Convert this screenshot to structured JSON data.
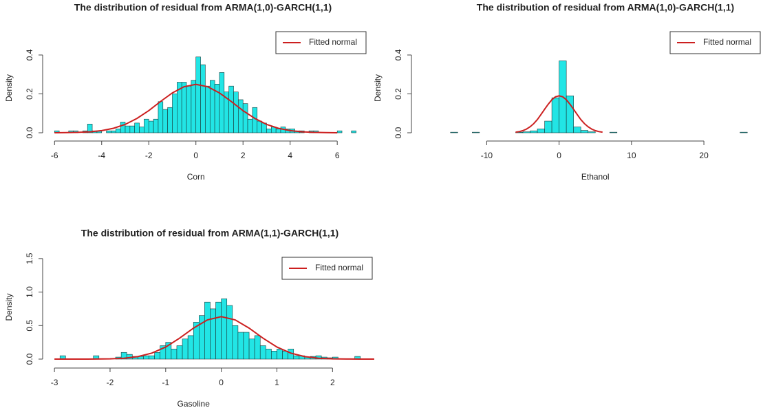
{
  "chart_data": [
    {
      "type": "histogram",
      "title": "The distribution of residual from ARMA(1,0)-GARCH(1,1)",
      "xlabel": "Corn",
      "ylabel": "Density",
      "color": "#22e5e5",
      "edgecolor": "#1a3a3a",
      "legend": "topright",
      "bins": [
        -6,
        -5.8,
        -5.6,
        -5.4,
        -5.2,
        -5,
        -4.8,
        -4.6,
        -4.4,
        -4.2,
        -4,
        -3.8,
        -3.6,
        -3.4,
        -3.2,
        -3,
        -2.8,
        -2.6,
        -2.4,
        -2.2,
        -2,
        -1.8,
        -1.6,
        -1.4,
        -1.2,
        -1,
        -0.8,
        -0.6,
        -0.4,
        -0.2,
        0,
        0.2,
        0.4,
        0.6,
        0.8,
        1,
        1.2,
        1.4,
        1.6,
        1.8,
        2,
        2.2,
        2.4,
        2.6,
        2.8,
        3,
        3.2,
        3.4,
        3.6,
        3.8,
        4,
        4.2,
        4.4,
        4.6,
        4.8,
        5,
        5.2,
        5.4,
        5.6,
        5.8,
        6,
        6.2,
        6.4,
        6.6,
        6.8
      ],
      "values": [
        0.01,
        0,
        0,
        0.01,
        0.01,
        0,
        0.01,
        0.045,
        0.01,
        0.01,
        0,
        0.01,
        0.01,
        0.02,
        0.055,
        0.035,
        0.035,
        0.05,
        0.03,
        0.07,
        0.06,
        0.07,
        0.16,
        0.12,
        0.13,
        0.2,
        0.26,
        0.26,
        0.24,
        0.27,
        0.39,
        0.35,
        0.24,
        0.27,
        0.25,
        0.31,
        0.21,
        0.24,
        0.21,
        0.17,
        0.15,
        0.07,
        0.13,
        0.06,
        0.05,
        0.02,
        0.03,
        0.02,
        0.03,
        0.02,
        0.02,
        0.01,
        0.01,
        0,
        0.01,
        0.01,
        0,
        0,
        0,
        0,
        0.01,
        0,
        0,
        0.01
      ],
      "lines": [
        {
          "name": "Fitted normal",
          "color": "#cc1f1f",
          "x": [
            -6,
            -5.5,
            -5,
            -4.5,
            -4,
            -3.5,
            -3,
            -2.5,
            -2,
            -1.5,
            -1,
            -0.5,
            0,
            0.5,
            1,
            1.5,
            2,
            2.5,
            3,
            3.5,
            4,
            4.5,
            5,
            5.5,
            6
          ],
          "values": [
            0,
            0.001,
            0.002,
            0.005,
            0.011,
            0.023,
            0.043,
            0.074,
            0.114,
            0.161,
            0.205,
            0.237,
            0.249,
            0.237,
            0.205,
            0.161,
            0.114,
            0.074,
            0.043,
            0.023,
            0.011,
            0.005,
            0.002,
            0.001,
            0
          ]
        }
      ],
      "xlim": [
        -6.3,
        6.9
      ],
      "xticks": [
        -6,
        -4,
        -2,
        0,
        2,
        4,
        6
      ],
      "ylim": [
        0,
        0.46
      ],
      "yticks": [
        {
          "value": 0,
          "label": "0.0"
        },
        0.2,
        0.4
      ]
    },
    {
      "type": "histogram",
      "title": "The distribution of residual from ARMA(1,0)-GARCH(1,1)",
      "xlabel": "Ethanol",
      "ylabel": "Density",
      "color": "#22e5e5",
      "edgecolor": "#1a3a3a",
      "legend": "topright",
      "bins": [
        -15,
        -14,
        -13,
        -12,
        -11,
        -10,
        -9,
        -8,
        -7,
        -6,
        -5,
        -4,
        -3,
        -2,
        -1,
        0,
        1,
        2,
        3,
        4,
        5,
        6,
        7,
        8,
        9,
        10,
        11,
        12,
        13,
        14,
        15,
        16,
        17,
        18,
        19,
        20,
        21,
        22,
        23,
        24,
        25,
        26
      ],
      "values": [
        0.003,
        0,
        0,
        0.003,
        0,
        0,
        0,
        0,
        0,
        0.003,
        0.005,
        0.01,
        0.02,
        0.06,
        0.18,
        0.37,
        0.19,
        0.03,
        0.012,
        0.005,
        0,
        0,
        0.003,
        0,
        0,
        0,
        0,
        0,
        0,
        0,
        0,
        0,
        0,
        0,
        0,
        0,
        0,
        0,
        0,
        0,
        0.003
      ],
      "lines": [
        {
          "name": "Fitted normal",
          "color": "#cc1f1f",
          "x": [
            -6,
            -5.5,
            -5,
            -4.5,
            -4,
            -3.5,
            -3,
            -2.5,
            -2,
            -1.5,
            -1,
            -0.5,
            0,
            0.5,
            1,
            1.5,
            2,
            2.5,
            3,
            3.5,
            4,
            4.5,
            5,
            5.5,
            6
          ],
          "values": [
            0.003,
            0.006,
            0.011,
            0.019,
            0.031,
            0.047,
            0.068,
            0.094,
            0.121,
            0.147,
            0.17,
            0.185,
            0.19,
            0.185,
            0.17,
            0.147,
            0.121,
            0.094,
            0.068,
            0.047,
            0.031,
            0.019,
            0.011,
            0.006,
            0.003
          ]
        }
      ],
      "xlim": [
        -16.5,
        27.5
      ],
      "xticks": [
        -10,
        0,
        10,
        20
      ],
      "ylim": [
        0,
        0.46
      ],
      "yticks": [
        {
          "value": 0,
          "label": "0.0"
        },
        0.2,
        0.4
      ]
    },
    {
      "type": "histogram",
      "title": "The distribution of residual from ARMA(1,1)-GARCH(1,1)",
      "xlabel": "Gasoline",
      "ylabel": "Density",
      "color": "#22e5e5",
      "edgecolor": "#1a3a3a",
      "legend": "topright",
      "bins": [
        -3,
        -2.9,
        -2.8,
        -2.7,
        -2.6,
        -2.5,
        -2.4,
        -2.3,
        -2.2,
        -2.1,
        -2,
        -1.9,
        -1.8,
        -1.7,
        -1.6,
        -1.5,
        -1.4,
        -1.3,
        -1.2,
        -1.1,
        -1,
        -0.9,
        -0.8,
        -0.7,
        -0.6,
        -0.5,
        -0.4,
        -0.3,
        -0.2,
        -0.1,
        0,
        0.1,
        0.2,
        0.3,
        0.4,
        0.5,
        0.6,
        0.7,
        0.8,
        0.9,
        1,
        1.1,
        1.2,
        1.3,
        1.4,
        1.5,
        1.6,
        1.7,
        1.8,
        1.9,
        2,
        2.1,
        2.2,
        2.3,
        2.4,
        2.5
      ],
      "values": [
        0,
        0.05,
        0,
        0,
        0,
        0,
        0,
        0.05,
        0,
        0,
        0,
        0.03,
        0.1,
        0.07,
        0.04,
        0.04,
        0.05,
        0.05,
        0.1,
        0.2,
        0.25,
        0.15,
        0.2,
        0.3,
        0.35,
        0.55,
        0.65,
        0.85,
        0.75,
        0.85,
        0.9,
        0.8,
        0.5,
        0.4,
        0.4,
        0.3,
        0.35,
        0.2,
        0.15,
        0.12,
        0.15,
        0.12,
        0.15,
        0.05,
        0.05,
        0.03,
        0.04,
        0.05,
        0.03,
        0.02,
        0.03,
        0,
        0,
        0,
        0.04
      ],
      "lines": [
        {
          "name": "Fitted normal",
          "color": "#cc1f1f",
          "x": [
            -3,
            -2.75,
            -2.5,
            -2.25,
            -2,
            -1.75,
            -1.5,
            -1.25,
            -1,
            -0.75,
            -0.5,
            -0.25,
            0,
            0.25,
            0.5,
            0.75,
            1,
            1.25,
            1.5,
            1.75,
            2,
            2.25,
            2.5,
            2.75
          ],
          "values": [
            0,
            0,
            0,
            0.001,
            0.004,
            0.013,
            0.037,
            0.089,
            0.18,
            0.312,
            0.462,
            0.585,
            0.633,
            0.585,
            0.462,
            0.312,
            0.18,
            0.089,
            0.037,
            0.013,
            0.004,
            0.001,
            0,
            0
          ]
        }
      ],
      "xlim": [
        -3.15,
        2.8
      ],
      "xticks": [
        -3,
        -2,
        -1,
        0,
        1,
        2
      ],
      "ylim": [
        0,
        1.55
      ],
      "yticks": [
        {
          "value": 0,
          "label": "0.0"
        },
        0.5,
        {
          "value": 1,
          "label": "1.0"
        },
        1.5
      ]
    }
  ]
}
